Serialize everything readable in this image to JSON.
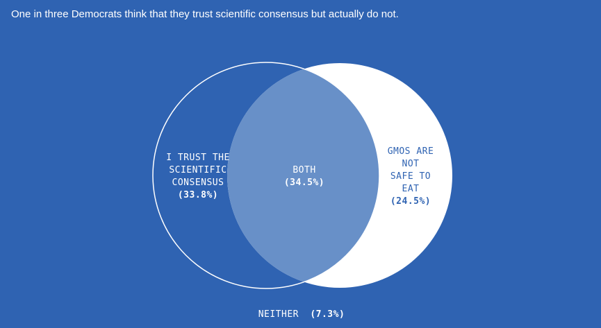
{
  "title": "One in three Democrats think that they trust scientific consensus but actually do not.",
  "colors": {
    "background": "#2f63b2",
    "right_circle": "#ffffff",
    "overlap": "#6890c8",
    "outline": "#ffffff",
    "right_text": "#2f63b2",
    "left_text": "#ffffff"
  },
  "venn": {
    "left": {
      "label_lines": [
        "I TRUST THE",
        "SCIENTIFIC",
        "CONSENSUS"
      ],
      "value": "(33.8%)"
    },
    "right": {
      "label_lines": [
        "GMOS ARE",
        "NOT",
        "SAFE TO",
        "EAT"
      ],
      "value": "(24.5%)"
    },
    "both": {
      "label": "BOTH",
      "value": "(34.5%)"
    },
    "neither": {
      "label": "NEITHER",
      "value": "(7.3%)"
    }
  }
}
